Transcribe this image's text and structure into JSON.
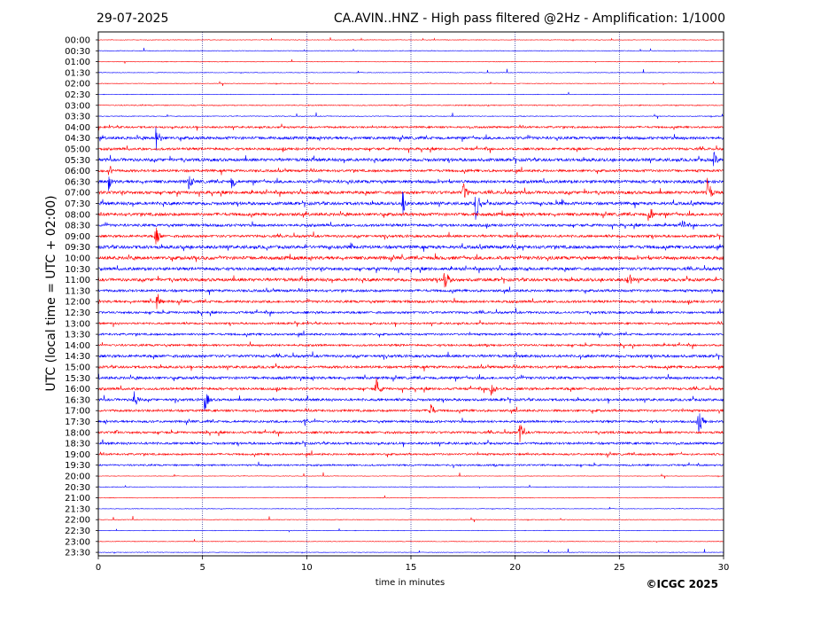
{
  "header": {
    "date": "29-07-2025",
    "title": "CA.AVIN..HNZ - High pass filtered @2Hz - Amplification: 1/1000"
  },
  "footer": {
    "copyright": "©ICGC 2025"
  },
  "chart_data": {
    "type": "line",
    "title": "CA.AVIN..HNZ - High pass filtered @2Hz - Amplification: 1/1000",
    "xlabel": "time in minutes",
    "ylabel": "UTC (local time = UTC + 02:00)",
    "xlim": [
      0,
      30
    ],
    "x_ticks": [
      "0",
      "5",
      "10",
      "15",
      "20",
      "25",
      "30"
    ],
    "x_tick_values": [
      0,
      5,
      10,
      15,
      20,
      25,
      30
    ],
    "grid": "vertical dotted lines at 5-minute ticks",
    "colors": {
      "even_trace": "#ff0000",
      "odd_trace": "#0000ff",
      "grid": "#000080"
    },
    "series": [
      {
        "row": "00:00",
        "noise": 0.3,
        "events": []
      },
      {
        "row": "00:30",
        "noise": 0.3,
        "events": []
      },
      {
        "row": "01:00",
        "noise": 0.3,
        "events": []
      },
      {
        "row": "01:30",
        "noise": 0.3,
        "events": []
      },
      {
        "row": "02:00",
        "noise": 0.3,
        "events": []
      },
      {
        "row": "02:30",
        "noise": 0.3,
        "events": []
      },
      {
        "row": "03:00",
        "noise": 0.5,
        "events": []
      },
      {
        "row": "03:30",
        "noise": 0.4,
        "events": []
      },
      {
        "row": "04:00",
        "noise": 1.0,
        "events": []
      },
      {
        "row": "04:30",
        "noise": 1.5,
        "events": [
          {
            "t": 2.75,
            "amp": 17
          }
        ]
      },
      {
        "row": "05:00",
        "noise": 1.3,
        "events": []
      },
      {
        "row": "05:30",
        "noise": 1.6,
        "events": [
          {
            "t": 29.5,
            "amp": 12
          }
        ]
      },
      {
        "row": "06:00",
        "noise": 1.3,
        "events": [
          {
            "t": 0.5,
            "amp": 9
          }
        ]
      },
      {
        "row": "06:30",
        "noise": 1.6,
        "events": [
          {
            "t": 0.45,
            "amp": 14
          },
          {
            "t": 4.3,
            "amp": 12
          },
          {
            "t": 6.4,
            "amp": 11
          }
        ]
      },
      {
        "row": "07:00",
        "noise": 1.6,
        "events": [
          {
            "t": 17.5,
            "amp": 14
          },
          {
            "t": 29.2,
            "amp": 20
          }
        ]
      },
      {
        "row": "07:30",
        "noise": 1.6,
        "events": [
          {
            "t": 14.6,
            "amp": 15
          },
          {
            "t": 18.1,
            "amp": 22
          }
        ]
      },
      {
        "row": "08:00",
        "noise": 1.6,
        "events": [
          {
            "t": 26.4,
            "amp": 16
          }
        ]
      },
      {
        "row": "08:30",
        "noise": 1.4,
        "events": [
          {
            "t": 28.0,
            "amp": 10
          }
        ]
      },
      {
        "row": "09:00",
        "noise": 1.3,
        "events": [
          {
            "t": 2.75,
            "amp": 14
          }
        ]
      },
      {
        "row": "09:30",
        "noise": 1.7,
        "events": []
      },
      {
        "row": "10:00",
        "noise": 1.8,
        "events": []
      },
      {
        "row": "10:30",
        "noise": 1.6,
        "events": []
      },
      {
        "row": "11:00",
        "noise": 1.6,
        "events": [
          {
            "t": 16.6,
            "amp": 17
          },
          {
            "t": 25.4,
            "amp": 12
          }
        ]
      },
      {
        "row": "11:30",
        "noise": 1.3,
        "events": []
      },
      {
        "row": "12:00",
        "noise": 1.3,
        "events": [
          {
            "t": 2.8,
            "amp": 14
          }
        ]
      },
      {
        "row": "12:30",
        "noise": 1.2,
        "events": []
      },
      {
        "row": "13:00",
        "noise": 1.0,
        "events": []
      },
      {
        "row": "13:30",
        "noise": 1.1,
        "events": []
      },
      {
        "row": "14:00",
        "noise": 1.1,
        "events": []
      },
      {
        "row": "14:30",
        "noise": 1.4,
        "events": []
      },
      {
        "row": "15:00",
        "noise": 1.3,
        "events": []
      },
      {
        "row": "15:30",
        "noise": 1.4,
        "events": []
      },
      {
        "row": "16:00",
        "noise": 1.3,
        "events": [
          {
            "t": 13.3,
            "amp": 16
          },
          {
            "t": 18.8,
            "amp": 15
          }
        ]
      },
      {
        "row": "16:30",
        "noise": 1.3,
        "events": [
          {
            "t": 1.7,
            "amp": 14
          },
          {
            "t": 5.1,
            "amp": 14
          }
        ]
      },
      {
        "row": "17:00",
        "noise": 1.2,
        "events": [
          {
            "t": 15.9,
            "amp": 13
          }
        ]
      },
      {
        "row": "17:30",
        "noise": 1.2,
        "events": [
          {
            "t": 9.9,
            "amp": 6
          },
          {
            "t": 28.8,
            "amp": 18
          }
        ]
      },
      {
        "row": "18:00",
        "noise": 1.2,
        "events": [
          {
            "t": 0.8,
            "amp": 5
          },
          {
            "t": 20.2,
            "amp": 14
          }
        ]
      },
      {
        "row": "18:30",
        "noise": 1.2,
        "events": []
      },
      {
        "row": "19:00",
        "noise": 1.0,
        "events": []
      },
      {
        "row": "19:30",
        "noise": 0.9,
        "events": []
      },
      {
        "row": "20:00",
        "noise": 0.3,
        "events": []
      },
      {
        "row": "20:30",
        "noise": 0.3,
        "events": []
      },
      {
        "row": "21:00",
        "noise": 0.3,
        "events": []
      },
      {
        "row": "21:30",
        "noise": 0.3,
        "events": []
      },
      {
        "row": "22:00",
        "noise": 0.3,
        "events": []
      },
      {
        "row": "22:30",
        "noise": 0.3,
        "events": []
      },
      {
        "row": "23:00",
        "noise": 0.3,
        "events": []
      },
      {
        "row": "23:30",
        "noise": 0.3,
        "events": []
      }
    ]
  }
}
